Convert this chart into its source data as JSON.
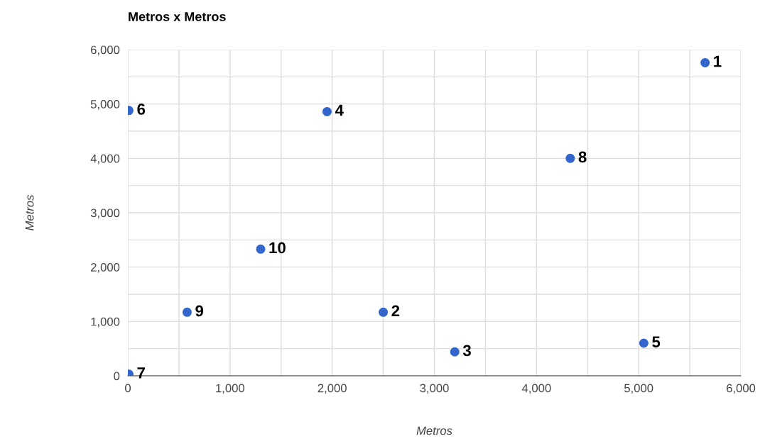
{
  "chart_data": {
    "type": "scatter",
    "title": "Metros x Metros",
    "xlabel": "Metros",
    "ylabel": "Metros",
    "x": [
      5650,
      2500,
      3200,
      1950,
      5050,
      10,
      10,
      4330,
      580,
      1300
    ],
    "series": [
      {
        "color": "#3366cc",
        "values": [
          5760,
          1170,
          440,
          4860,
          600,
          4880,
          30,
          4000,
          1170,
          2330
        ]
      }
    ],
    "xlim": [
      0,
      6000
    ],
    "ylim": [
      0,
      6000
    ],
    "xticks": [
      0,
      {
        "value": 500,
        "label": null
      },
      {
        "value": 1000,
        "label": "1,000"
      },
      {
        "value": 1500,
        "label": null
      },
      {
        "value": 2000,
        "label": "2,000"
      },
      {
        "value": 2500,
        "label": null
      },
      {
        "value": 3000,
        "label": "3,000"
      },
      {
        "value": 3500,
        "label": null
      },
      {
        "value": 4000,
        "label": "4,000"
      },
      {
        "value": 4500,
        "label": null
      },
      {
        "value": 5000,
        "label": "5,000"
      },
      {
        "value": 5500,
        "label": null
      },
      {
        "value": 6000,
        "label": "6,000"
      }
    ],
    "yticks": [
      0,
      {
        "value": 500,
        "label": null
      },
      {
        "value": 1000,
        "label": "1,000"
      },
      {
        "value": 1500,
        "label": null
      },
      {
        "value": 2000,
        "label": "2,000"
      },
      {
        "value": 2500,
        "label": null
      },
      {
        "value": 3000,
        "label": "3,000"
      },
      {
        "value": 3500,
        "label": null
      },
      {
        "value": 4000,
        "label": "4,000"
      },
      {
        "value": 4500,
        "label": null
      },
      {
        "value": 5000,
        "label": "5,000"
      },
      {
        "value": 5500,
        "label": null
      },
      {
        "value": 6000,
        "label": "6,000"
      }
    ],
    "grid": true,
    "marker": "circle",
    "legend": false,
    "annotations": [
      {
        "text": "1",
        "x": 5650,
        "y": 5760
      },
      {
        "text": "2",
        "x": 2500,
        "y": 1170
      },
      {
        "text": "3",
        "x": 3200,
        "y": 440
      },
      {
        "text": "4",
        "x": 1950,
        "y": 4860
      },
      {
        "text": "5",
        "x": 5050,
        "y": 600
      },
      {
        "text": "6",
        "x": 10,
        "y": 4880
      },
      {
        "text": "7",
        "x": 10,
        "y": 30
      },
      {
        "text": "8",
        "x": 4330,
        "y": 4000
      },
      {
        "text": "9",
        "x": 580,
        "y": 1170
      },
      {
        "text": "10",
        "x": 1300,
        "y": 2330
      }
    ]
  }
}
